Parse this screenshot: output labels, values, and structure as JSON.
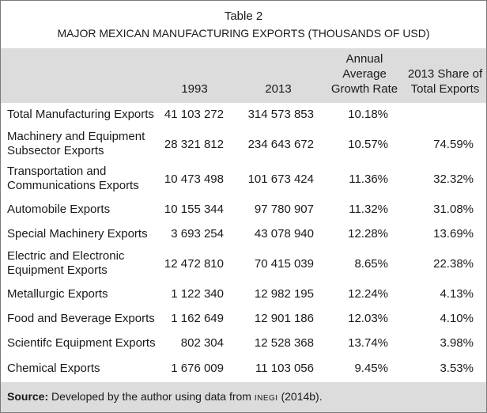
{
  "table": {
    "number": "Table 2",
    "caption": "MAJOR MEXICAN MANUFACTURING EXPORTS (THOUSANDS OF USD)",
    "headers": {
      "col1993": "1993",
      "col2013": "2013",
      "growth_line1": "Annual",
      "growth_line2": "Average",
      "growth_line3": "Growth Rate",
      "share_line1": "2013 Share of",
      "share_line2": "Total Exports"
    },
    "rows": [
      {
        "label1": "Total Manufacturing Exports",
        "label2": "",
        "v1993": "41 103 272",
        "v2013": "314 573 853",
        "growth": "10.18%",
        "share": ""
      },
      {
        "label1": "Machinery and Equipment",
        "label2": "Subsector Exports",
        "v1993": "28 321 812",
        "v2013": "234 643 672",
        "growth": "10.57%",
        "share": "74.59%"
      },
      {
        "label1": "Transportation and",
        "label2": "Communications Exports",
        "v1993": "10 473 498",
        "v2013": "101 673 424",
        "growth": "11.36%",
        "share": "32.32%"
      },
      {
        "label1": "Automobile Exports",
        "label2": "",
        "v1993": "10 155 344",
        "v2013": "97 780 907",
        "growth": "11.32%",
        "share": "31.08%"
      },
      {
        "label1": "Special Machinery Exports",
        "label2": "",
        "v1993": "3 693 254",
        "v2013": "43 078 940",
        "growth": "12.28%",
        "share": "13.69%"
      },
      {
        "label1": "Electric and Electronic",
        "label2": "Equipment Exports",
        "v1993": "12 472 810",
        "v2013": "70 415 039",
        "growth": "8.65%",
        "share": "22.38%"
      },
      {
        "label1": "Metallurgic Exports",
        "label2": "",
        "v1993": "1 122 340",
        "v2013": "12 982 195",
        "growth": "12.24%",
        "share": "4.13%"
      },
      {
        "label1": "Food and Beverage Exports",
        "label2": "",
        "v1993": "1 162 649",
        "v2013": "12 901 186",
        "growth": "12.03%",
        "share": "4.10%"
      },
      {
        "label1": "Scientifc Equipment Exports",
        "label2": "",
        "v1993": "802 304",
        "v2013": "12 528 368",
        "growth": "13.74%",
        "share": "3.98%"
      },
      {
        "label1": "Chemical Exports",
        "label2": "",
        "v1993": "1 676 009",
        "v2013": "11 103 056",
        "growth": "9.45%",
        "share": "3.53%"
      }
    ],
    "source": {
      "label": "Source:",
      "text_before": "Developed by the author using data from",
      "agency": "INEGI",
      "text_after": "(2014b)."
    }
  }
}
